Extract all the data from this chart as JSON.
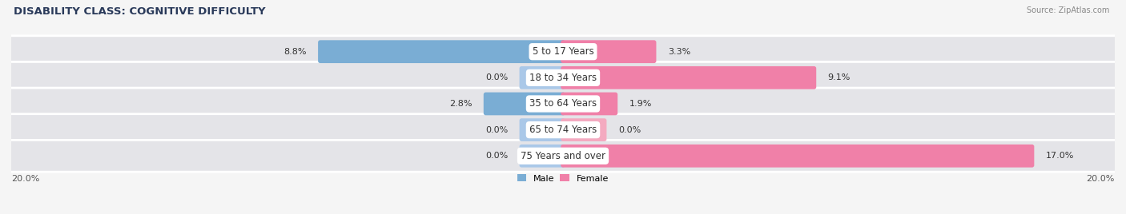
{
  "title": "DISABILITY CLASS: COGNITIVE DIFFICULTY",
  "source": "Source: ZipAtlas.com",
  "categories": [
    "5 to 17 Years",
    "18 to 34 Years",
    "35 to 64 Years",
    "65 to 74 Years",
    "75 Years and over"
  ],
  "male_values": [
    8.8,
    0.0,
    2.8,
    0.0,
    0.0
  ],
  "female_values": [
    3.3,
    9.1,
    1.9,
    0.0,
    17.0
  ],
  "max_val": 20.0,
  "male_bar_color": "#7aadd4",
  "female_bar_color": "#f080a8",
  "male_min_color": "#aac8e8",
  "female_min_color": "#f4aac0",
  "row_bg_color": "#e4e4e8",
  "bg_color": "#f5f5f5",
  "title_color": "#2a3a5a",
  "source_color": "#888888",
  "label_color": "#333333",
  "title_fontsize": 9.5,
  "label_fontsize": 8.0,
  "value_fontsize": 8.0,
  "cat_fontsize": 8.5,
  "xlim": 20.0,
  "min_bar": 1.5
}
